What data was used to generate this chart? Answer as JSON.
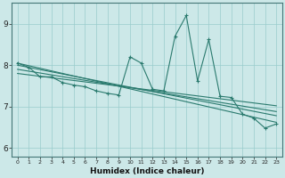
{
  "xlabel": "Humidex (Indice chaleur)",
  "bg_color": "#cce8e8",
  "grid_color": "#99cccc",
  "line_color": "#2a7a6e",
  "xlim": [
    -0.5,
    23.5
  ],
  "ylim": [
    5.8,
    9.5
  ],
  "yticks": [
    6,
    7,
    8,
    9
  ],
  "xticks": [
    0,
    1,
    2,
    3,
    4,
    5,
    6,
    7,
    8,
    9,
    10,
    11,
    12,
    13,
    14,
    15,
    16,
    17,
    18,
    19,
    20,
    21,
    22,
    23
  ],
  "series": [
    [
      0,
      8.05
    ],
    [
      1,
      7.95
    ],
    [
      2,
      7.72
    ],
    [
      3,
      7.72
    ],
    [
      4,
      7.58
    ],
    [
      5,
      7.52
    ],
    [
      6,
      7.48
    ],
    [
      7,
      7.38
    ],
    [
      8,
      7.32
    ],
    [
      9,
      7.28
    ],
    [
      10,
      8.2
    ],
    [
      11,
      8.05
    ],
    [
      12,
      7.42
    ],
    [
      13,
      7.38
    ],
    [
      14,
      8.7
    ],
    [
      15,
      9.2
    ],
    [
      16,
      7.62
    ],
    [
      17,
      8.62
    ],
    [
      18,
      7.25
    ],
    [
      19,
      7.22
    ],
    [
      20,
      6.82
    ],
    [
      21,
      6.72
    ],
    [
      22,
      6.48
    ],
    [
      23,
      6.58
    ]
  ],
  "trend_lines": [
    [
      [
        0,
        8.05
      ],
      [
        23,
        6.62
      ]
    ],
    [
      [
        0,
        8.0
      ],
      [
        23,
        6.78
      ]
    ],
    [
      [
        0,
        7.9
      ],
      [
        23,
        6.88
      ]
    ],
    [
      [
        0,
        7.8
      ],
      [
        23,
        7.02
      ]
    ]
  ]
}
